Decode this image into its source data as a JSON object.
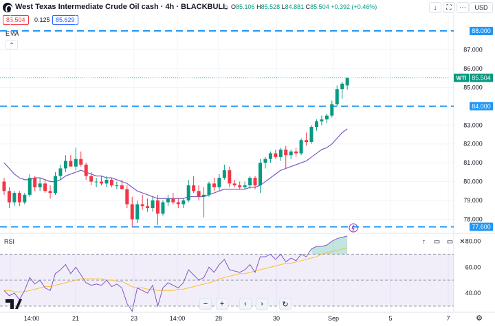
{
  "header": {
    "title": "West Texas Intermediate Crude Oil cash · 4h · BLACKBULL",
    "ohlc": {
      "o_label": "O",
      "o": "85.106",
      "h_label": "H",
      "h": "85.528",
      "l_label": "L",
      "l": "84.881",
      "c_label": "C",
      "c": "85.504",
      "change": "+0.392 (+0.46%)"
    },
    "buttons": [
      {
        "name": "arrow-down-icon",
        "glyph": "↓"
      },
      {
        "name": "maximize-icon",
        "glyph": "⛶"
      },
      {
        "name": "more-icon",
        "glyph": "⋯"
      }
    ],
    "currency": "USD"
  },
  "quote": {
    "sell": "85.504",
    "spread": "0.125",
    "buy": "85.629"
  },
  "indicator_label": "EMA",
  "collapse_glyph": "⌃",
  "price_axis": {
    "ticks": [
      "87.000",
      "86.000",
      "85.000",
      "83.000",
      "82.000",
      "81.000",
      "80.000",
      "79.000",
      "78.000"
    ],
    "labels": [
      {
        "text": "88.000",
        "color": "#2196f3",
        "value": 88.0
      },
      {
        "text": "84.000",
        "color": "#2196f3",
        "value": 84.0
      },
      {
        "text": "77.600",
        "color": "#2196f3",
        "value": 77.6
      }
    ],
    "symbol_tag": "WTI",
    "symbol_price": "85.504"
  },
  "rsi": {
    "label": "RSI",
    "ticks": [
      "80.00",
      "60.00",
      "40.00"
    ],
    "controls": [
      {
        "name": "move-up-icon",
        "glyph": "↑"
      },
      {
        "name": "maximize-pane-icon",
        "glyph": "▭"
      },
      {
        "name": "maximize-pane-alt-icon",
        "glyph": "▭"
      },
      {
        "name": "close-pane-icon",
        "glyph": "✕"
      }
    ]
  },
  "time_axis": {
    "ticks": [
      "14:00",
      "21",
      "23",
      "14:00",
      "28",
      "30",
      "Sep",
      "5",
      "7"
    ]
  },
  "nav": {
    "zoom_out": "−",
    "zoom_in": "+",
    "scroll_left": "‹",
    "scroll_right": "›",
    "reset": "↻"
  },
  "settings_glyph": "⚙",
  "colors": {
    "up": "#089981",
    "down": "#f23645",
    "ema": "#7e57c2",
    "level": "#2196f3",
    "rsi": "#7e57c2",
    "rsi_ma": "#fbc02d"
  },
  "chart_data": {
    "type": "candlestick",
    "symbol": "WTI",
    "interval": "4h",
    "x_labels": [
      "14:00",
      "21",
      "23",
      "14:00",
      "28",
      "30",
      "Sep",
      "5",
      "7"
    ],
    "ylim": [
      77.4,
      88.4
    ],
    "horizontal_levels": [
      88.0,
      84.0,
      77.6
    ],
    "last_price": 85.504,
    "candles": [
      [
        80.0,
        80.2,
        79.3,
        79.5
      ],
      [
        79.5,
        79.7,
        78.6,
        78.9
      ],
      [
        78.9,
        79.5,
        78.7,
        79.4
      ],
      [
        79.4,
        79.5,
        78.7,
        78.9
      ],
      [
        78.9,
        79.4,
        78.8,
        79.3
      ],
      [
        79.3,
        80.4,
        79.2,
        80.2
      ],
      [
        80.2,
        80.3,
        79.5,
        79.7
      ],
      [
        79.7,
        80.2,
        79.5,
        79.9
      ],
      [
        79.9,
        80.1,
        79.4,
        79.5
      ],
      [
        79.5,
        79.8,
        79.1,
        79.4
      ],
      [
        79.4,
        80.5,
        79.3,
        80.3
      ],
      [
        80.3,
        80.9,
        80.1,
        80.7
      ],
      [
        80.7,
        81.4,
        80.5,
        81.1
      ],
      [
        81.1,
        81.4,
        80.8,
        80.8
      ],
      [
        80.8,
        81.8,
        80.6,
        81.2
      ],
      [
        81.2,
        81.6,
        80.8,
        80.9
      ],
      [
        80.9,
        81.0,
        80.1,
        80.3
      ],
      [
        80.3,
        80.5,
        79.8,
        80.0
      ],
      [
        80.0,
        80.2,
        79.7,
        80.0
      ],
      [
        80.0,
        80.3,
        79.8,
        79.9
      ],
      [
        79.9,
        80.3,
        79.7,
        80.1
      ],
      [
        80.1,
        80.2,
        79.7,
        79.8
      ],
      [
        79.8,
        80.0,
        79.6,
        79.8
      ],
      [
        79.8,
        80.1,
        79.6,
        79.6
      ],
      [
        79.6,
        79.8,
        78.6,
        78.8
      ],
      [
        78.8,
        79.2,
        77.6,
        78.0
      ],
      [
        78.0,
        79.0,
        77.8,
        78.8
      ],
      [
        78.8,
        79.3,
        78.5,
        78.7
      ],
      [
        78.7,
        79.1,
        78.4,
        78.6
      ],
      [
        78.6,
        79.2,
        78.4,
        79.0
      ],
      [
        79.0,
        79.3,
        77.7,
        78.3
      ],
      [
        78.3,
        79.0,
        78.2,
        78.9
      ],
      [
        78.9,
        79.3,
        78.7,
        79.1
      ],
      [
        79.1,
        79.4,
        78.8,
        78.9
      ],
      [
        78.9,
        79.1,
        78.6,
        78.8
      ],
      [
        78.8,
        79.1,
        78.6,
        79.0
      ],
      [
        79.0,
        80.1,
        78.9,
        79.8
      ],
      [
        79.8,
        80.3,
        79.4,
        79.5
      ],
      [
        79.5,
        79.8,
        79.0,
        79.2
      ],
      [
        79.2,
        79.7,
        78.1,
        79.3
      ],
      [
        79.3,
        80.0,
        79.2,
        79.9
      ],
      [
        79.9,
        80.2,
        79.5,
        79.7
      ],
      [
        79.7,
        80.4,
        79.5,
        80.2
      ],
      [
        80.2,
        80.9,
        80.1,
        80.6
      ],
      [
        80.6,
        80.8,
        79.7,
        79.9
      ],
      [
        79.9,
        80.1,
        79.7,
        79.8
      ],
      [
        79.8,
        80.0,
        79.6,
        79.7
      ],
      [
        79.7,
        80.0,
        79.6,
        79.8
      ],
      [
        79.8,
        80.3,
        79.6,
        80.2
      ],
      [
        80.2,
        80.3,
        79.6,
        79.8
      ],
      [
        79.8,
        81.2,
        79.4,
        81.0
      ],
      [
        81.0,
        81.3,
        80.7,
        81.2
      ],
      [
        81.2,
        81.6,
        81.0,
        81.5
      ],
      [
        81.5,
        81.7,
        81.2,
        81.3
      ],
      [
        81.3,
        81.8,
        81.1,
        81.7
      ],
      [
        81.7,
        81.9,
        80.7,
        81.4
      ],
      [
        81.4,
        81.7,
        81.2,
        81.6
      ],
      [
        81.6,
        81.8,
        81.3,
        81.5
      ],
      [
        81.5,
        82.3,
        81.4,
        82.2
      ],
      [
        82.2,
        82.6,
        81.9,
        82.1
      ],
      [
        82.1,
        83.0,
        82.0,
        82.9
      ],
      [
        82.9,
        83.3,
        82.7,
        83.2
      ],
      [
        83.2,
        83.5,
        83.0,
        83.3
      ],
      [
        83.3,
        83.6,
        83.1,
        83.5
      ],
      [
        83.5,
        84.3,
        83.4,
        84.1
      ],
      [
        84.1,
        85.1,
        84.0,
        84.9
      ],
      [
        84.9,
        85.3,
        84.4,
        85.2
      ],
      [
        85.106,
        85.528,
        84.881,
        85.504
      ]
    ],
    "ema": [
      81.0,
      80.7,
      80.4,
      80.2,
      80.1,
      80.1,
      80.2,
      80.2,
      80.1,
      80.0,
      80.0,
      80.1,
      80.3,
      80.4,
      80.5,
      80.6,
      80.5,
      80.4,
      80.3,
      80.3,
      80.2,
      80.2,
      80.1,
      80.0,
      79.9,
      79.7,
      79.5,
      79.4,
      79.3,
      79.2,
      79.1,
      79.1,
      79.1,
      79.1,
      79.1,
      79.1,
      79.2,
      79.2,
      79.2,
      79.2,
      79.3,
      79.4,
      79.5,
      79.6,
      79.6,
      79.6,
      79.6,
      79.6,
      79.7,
      79.7,
      79.8,
      80.0,
      80.2,
      80.4,
      80.6,
      80.7,
      80.8,
      80.9,
      81.0,
      81.1,
      81.3,
      81.5,
      81.7,
      81.8,
      82.0,
      82.3,
      82.6,
      82.8
    ],
    "rsi": {
      "ylim": [
        30,
        85
      ],
      "bands": [
        70,
        50,
        30
      ],
      "values": [
        42,
        38,
        40,
        35,
        42,
        52,
        47,
        50,
        44,
        42,
        55,
        58,
        62,
        55,
        60,
        54,
        48,
        46,
        47,
        46,
        50,
        45,
        47,
        44,
        32,
        26,
        44,
        42,
        40,
        46,
        30,
        44,
        48,
        46,
        44,
        48,
        58,
        54,
        50,
        52,
        60,
        56,
        62,
        66,
        58,
        57,
        56,
        58,
        62,
        56,
        68,
        68,
        70,
        66,
        70,
        64,
        67,
        65,
        70,
        68,
        74,
        76,
        76,
        77,
        80,
        82,
        83,
        84
      ],
      "ma": [
        42,
        42,
        41,
        41,
        41,
        42,
        43,
        44,
        45,
        45,
        46,
        47,
        48,
        49,
        50,
        51,
        51,
        51,
        51,
        51,
        50,
        50,
        49,
        49,
        47,
        45,
        44,
        44,
        43,
        43,
        42,
        42,
        42,
        42,
        43,
        43,
        44,
        45,
        46,
        47,
        48,
        49,
        51,
        52,
        53,
        54,
        55,
        55,
        56,
        57,
        58,
        59,
        60,
        61,
        62,
        63,
        63,
        64,
        65,
        66,
        67,
        68,
        70,
        71,
        72,
        73,
        74,
        75
      ]
    }
  }
}
